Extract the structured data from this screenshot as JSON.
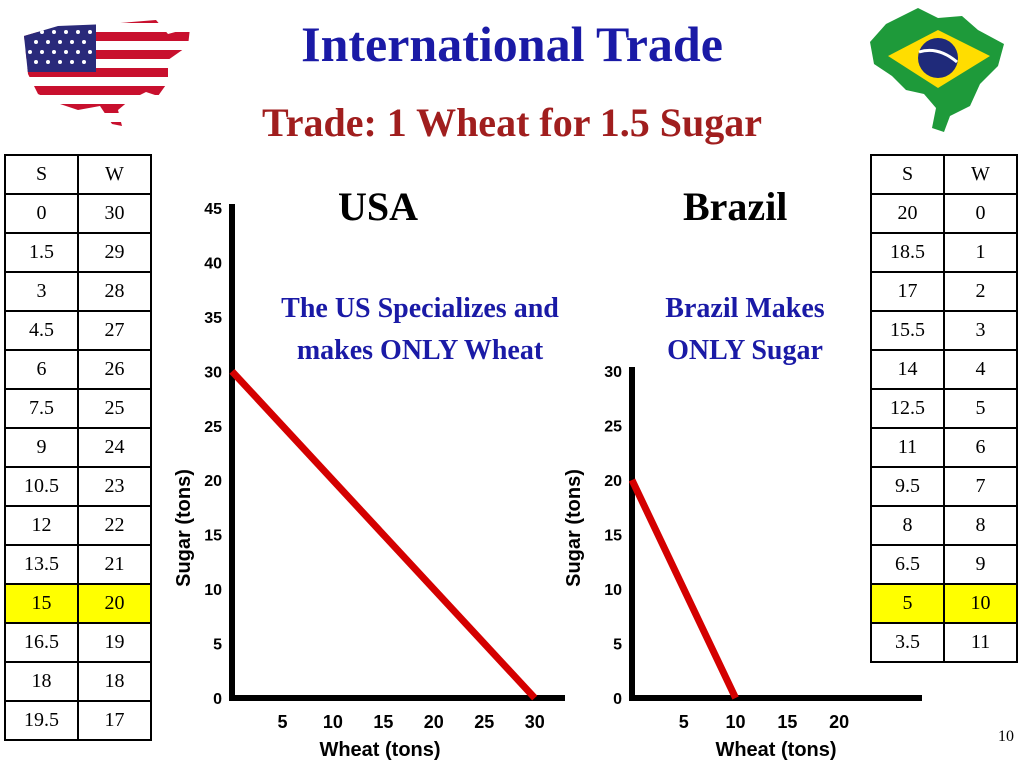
{
  "header": {
    "title": "International Trade",
    "subtitle": "Trade: 1 Wheat for 1.5 Sugar"
  },
  "flags": {
    "left_icon": "usa-map-flag",
    "right_icon": "brazil-map-flag"
  },
  "usa_table": {
    "headers": [
      "S",
      "W"
    ],
    "rows": [
      [
        "0",
        "30"
      ],
      [
        "1.5",
        "29"
      ],
      [
        "3",
        "28"
      ],
      [
        "4.5",
        "27"
      ],
      [
        "6",
        "26"
      ],
      [
        "7.5",
        "25"
      ],
      [
        "9",
        "24"
      ],
      [
        "10.5",
        "23"
      ],
      [
        "12",
        "22"
      ],
      [
        "13.5",
        "21"
      ],
      [
        "15",
        "20"
      ],
      [
        "16.5",
        "19"
      ],
      [
        "18",
        "18"
      ],
      [
        "19.5",
        "17"
      ]
    ],
    "highlight_row": 10
  },
  "brazil_table": {
    "headers": [
      "S",
      "W"
    ],
    "rows": [
      [
        "20",
        "0"
      ],
      [
        "18.5",
        "1"
      ],
      [
        "17",
        "2"
      ],
      [
        "15.5",
        "3"
      ],
      [
        "14",
        "4"
      ],
      [
        "12.5",
        "5"
      ],
      [
        "11",
        "6"
      ],
      [
        "9.5",
        "7"
      ],
      [
        "8",
        "8"
      ],
      [
        "6.5",
        "9"
      ],
      [
        "5",
        "10"
      ],
      [
        "3.5",
        "11"
      ]
    ],
    "highlight_row": 10
  },
  "usa_panel": {
    "title": "USA",
    "note_line1": "The US Specializes and",
    "note_line2": "makes ONLY Wheat"
  },
  "brazil_panel": {
    "title": "Brazil",
    "note_line1": "Brazil Makes",
    "note_line2": "ONLY Sugar"
  },
  "slide_number": "10",
  "chart_data": [
    {
      "type": "line",
      "title": "USA",
      "xlabel": "Wheat (tons)",
      "ylabel": "Sugar (tons)",
      "x_ticks": [
        5,
        10,
        15,
        20,
        25,
        30
      ],
      "y_ticks": [
        0,
        5,
        10,
        15,
        20,
        25,
        30,
        35,
        40,
        45
      ],
      "xlim": [
        0,
        33
      ],
      "ylim": [
        0,
        45
      ],
      "series": [
        {
          "x": [
            0,
            30
          ],
          "y": [
            30,
            0
          ],
          "color": "#d40000"
        }
      ]
    },
    {
      "type": "line",
      "title": "Brazil",
      "xlabel": "Wheat (tons)",
      "ylabel": "Sugar (tons)",
      "x_ticks": [
        5,
        10,
        15,
        20
      ],
      "y_ticks": [
        0,
        5,
        10,
        15,
        20,
        25,
        30
      ],
      "xlim": [
        0,
        28
      ],
      "ylim": [
        0,
        30
      ],
      "series": [
        {
          "x": [
            0,
            10
          ],
          "y": [
            20,
            0
          ],
          "color": "#d40000"
        }
      ]
    }
  ]
}
